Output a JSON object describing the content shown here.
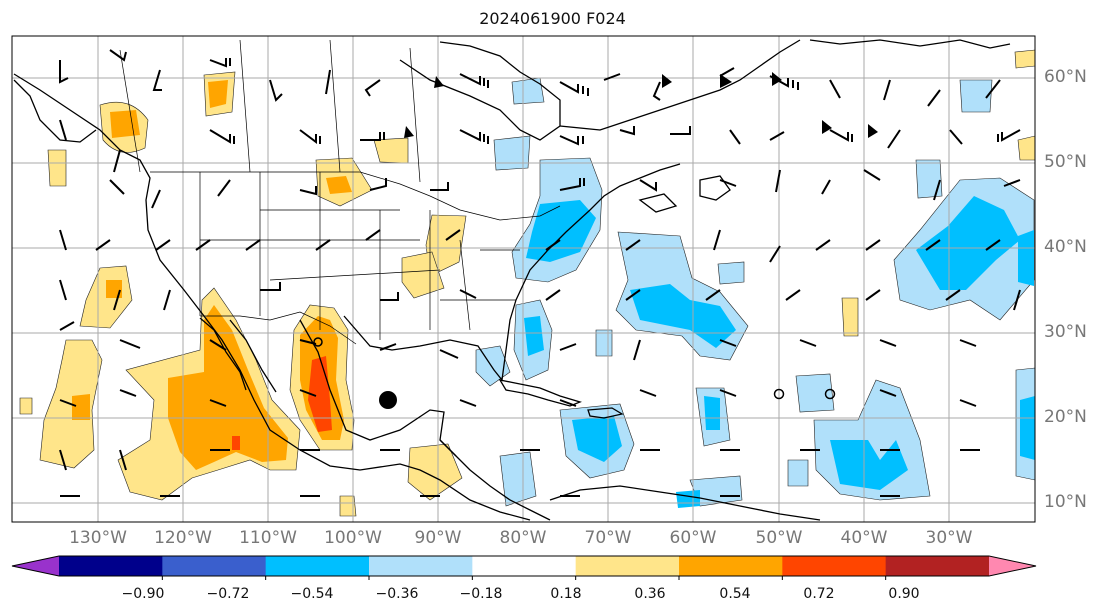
{
  "title": "2024061900 F024",
  "latitude_labels": [
    "60°N",
    "50°N",
    "40°N",
    "30°N",
    "20°N",
    "10°N"
  ],
  "longitude_labels": [
    "130°W",
    "120°W",
    "110°W",
    "100°W",
    "90°W",
    "80°W",
    "70°W",
    "60°W",
    "50°W",
    "40°W",
    "30°W"
  ],
  "colorbar": {
    "ticks": [
      "−0.90",
      "−0.72",
      "−0.54",
      "−0.36",
      "−0.18",
      "0.18",
      "0.36",
      "0.54",
      "0.72",
      "0.90"
    ],
    "colors": [
      "#9932cc",
      "#00008b",
      "#3a5fcd",
      "#00bfff",
      "#b0e0fa",
      "#ffffff",
      "#ffe58a",
      "#ffa500",
      "#ff4500",
      "#b22222",
      "#ff88b0"
    ]
  },
  "field_colors": {
    "pos_light": "#ffe58a",
    "pos_mid": "#ffa500",
    "pos_high": "#ff4500",
    "neg_light": "#b0e0fa",
    "neg_mid": "#00bfff"
  },
  "storm_markers": [
    "filled-circle",
    "open-circle",
    "open-circle",
    "open-circle"
  ]
}
